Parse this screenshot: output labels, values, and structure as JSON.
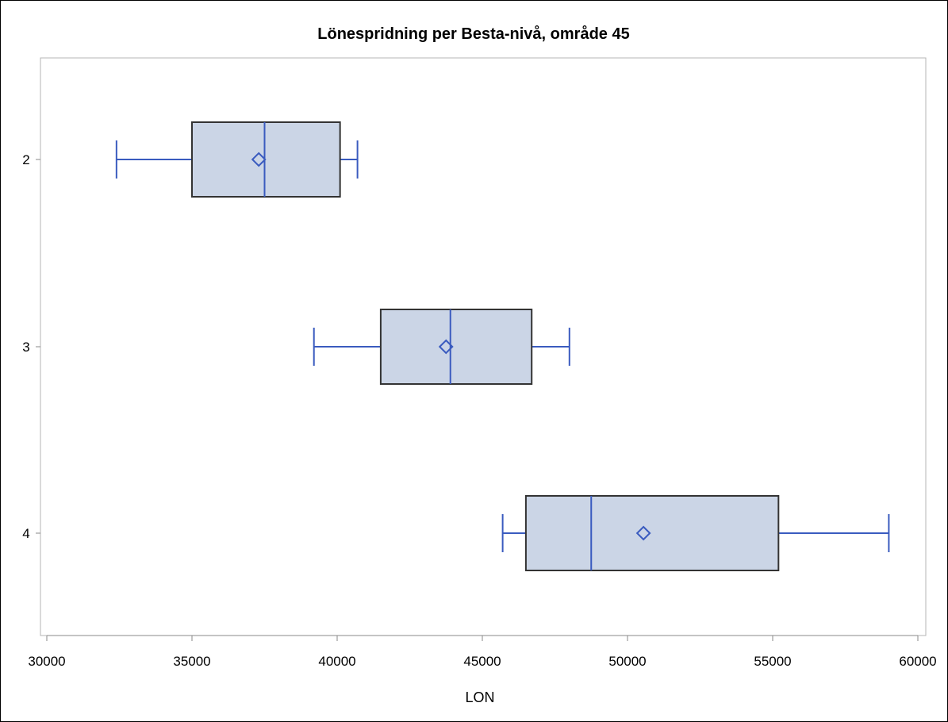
{
  "chart_data": {
    "type": "box",
    "orientation": "horizontal",
    "title": "Lönespridning per Besta-nivå, område 45",
    "xlabel": "LON",
    "ylabel": "",
    "xlim": [
      30000,
      60000
    ],
    "xticks": [
      "30000",
      "35000",
      "40000",
      "45000",
      "50000",
      "55000",
      "60000"
    ],
    "categories": [
      "2",
      "3",
      "4"
    ],
    "boxes": [
      {
        "category": "2",
        "whisker_low": 32400,
        "q1": 35000,
        "median": 37500,
        "mean": 37300,
        "q3": 40100,
        "whisker_high": 40700
      },
      {
        "category": "3",
        "whisker_low": 39200,
        "q1": 41500,
        "median": 43900,
        "mean": 43750,
        "q3": 46700,
        "whisker_high": 48000
      },
      {
        "category": "4",
        "whisker_low": 45700,
        "q1": 46500,
        "median": 48750,
        "mean": 50550,
        "q3": 55200,
        "whisker_high": 59000
      }
    ],
    "grid": false,
    "colors": {
      "box_fill": "#cbd5e6",
      "box_stroke": "#333333",
      "whisker": "#3a5bbf",
      "mean_marker": "#3a5bbf",
      "axis": "#888888"
    }
  }
}
